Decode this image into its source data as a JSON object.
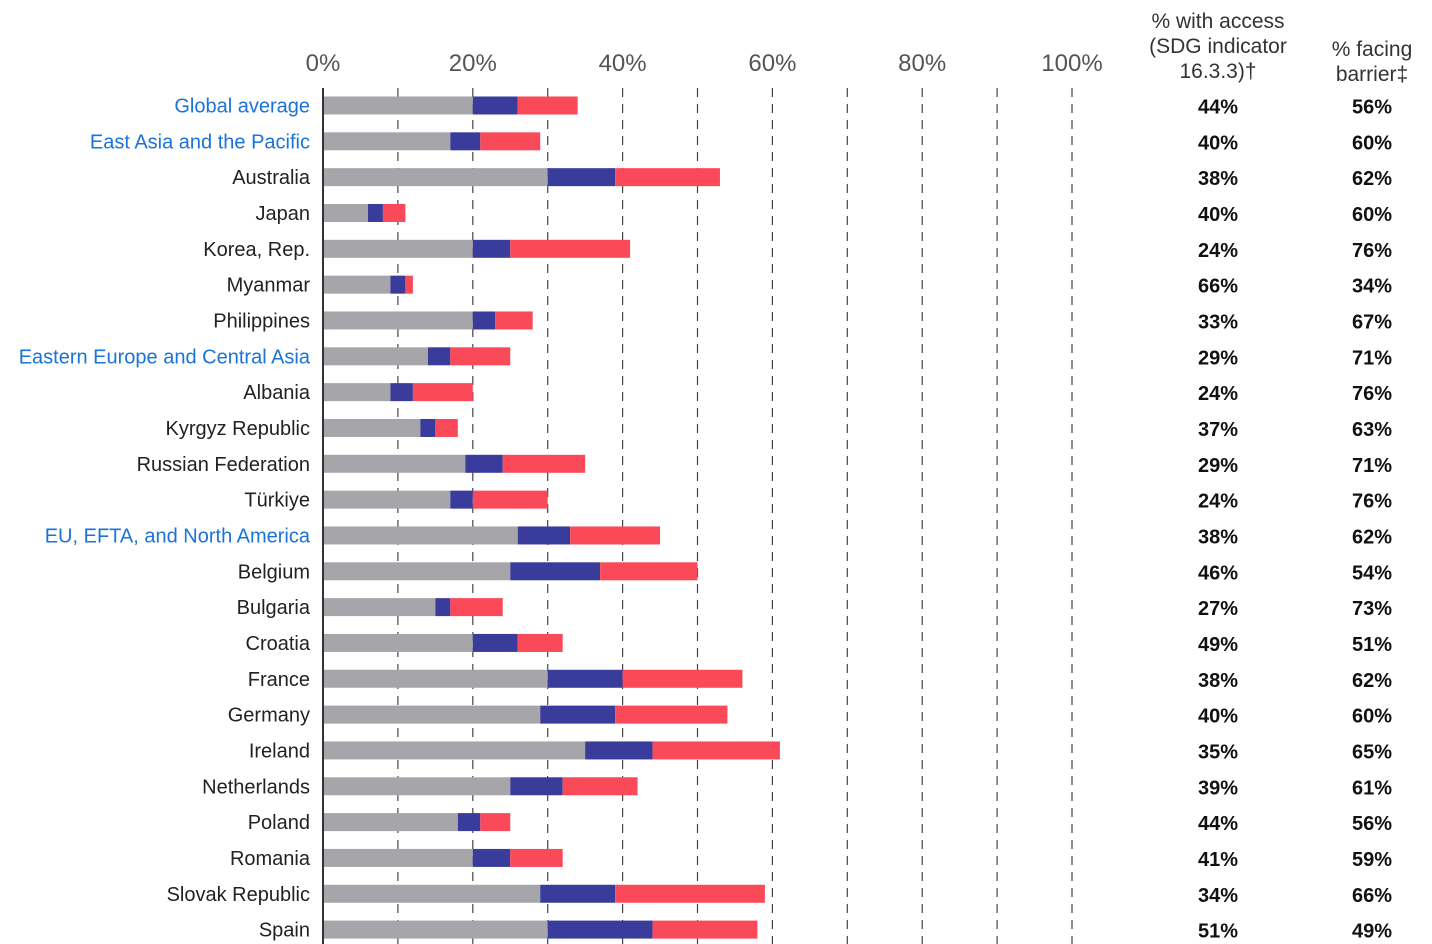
{
  "chart_data": {
    "type": "bar",
    "orientation": "horizontal",
    "stacked": true,
    "xlim": [
      0,
      100
    ],
    "x_ticks": [
      "0%",
      "20%",
      "40%",
      "60%",
      "80%",
      "100%"
    ],
    "grid": true,
    "colors": {
      "segment_1": "#a6a6aa",
      "segment_2": "#3a3c9c",
      "segment_3": "#fa4a5a",
      "region_label": "#1a73d9",
      "country_label": "#222222"
    },
    "columns": [
      {
        "lines": [
          "% with access",
          "(SDG indicator",
          "16.3.3)†"
        ]
      },
      {
        "lines": [
          "% facing",
          "barrier‡"
        ]
      }
    ],
    "categories": [
      "Global average",
      "East Asia and the Pacific",
      "Australia",
      "Japan",
      "Korea, Rep.",
      "Myanmar",
      "Philippines",
      "Eastern Europe and Central Asia",
      "Albania",
      "Kyrgyz Republic",
      "Russian Federation",
      "Türkiye",
      "EU, EFTA, and North America",
      "Belgium",
      "Bulgaria",
      "Croatia",
      "France",
      "Germany",
      "Ireland",
      "Netherlands",
      "Poland",
      "Romania",
      "Slovak Republic",
      "Spain"
    ],
    "is_region": [
      true,
      true,
      false,
      false,
      false,
      false,
      false,
      true,
      false,
      false,
      false,
      false,
      true,
      false,
      false,
      false,
      false,
      false,
      false,
      false,
      false,
      false,
      false,
      false
    ],
    "series": [
      {
        "values": [
          20,
          17,
          30,
          6,
          20,
          9,
          20,
          14,
          9,
          13,
          19,
          17,
          26,
          25,
          15,
          20,
          30,
          29,
          35,
          25,
          18,
          20,
          29,
          30
        ]
      },
      {
        "values": [
          6,
          4,
          9,
          2,
          5,
          2,
          3,
          3,
          3,
          2,
          5,
          3,
          7,
          12,
          2,
          6,
          10,
          10,
          9,
          7,
          3,
          5,
          10,
          14
        ]
      },
      {
        "values": [
          8,
          8,
          14,
          3,
          16,
          1,
          5,
          8,
          8,
          3,
          11,
          10,
          12,
          13,
          7,
          6,
          16,
          15,
          17,
          10,
          4,
          7,
          20,
          14
        ]
      }
    ],
    "pct_with_access": [
      "44%",
      "40%",
      "38%",
      "40%",
      "24%",
      "66%",
      "33%",
      "29%",
      "24%",
      "37%",
      "29%",
      "24%",
      "38%",
      "46%",
      "27%",
      "49%",
      "38%",
      "40%",
      "35%",
      "39%",
      "44%",
      "41%",
      "34%",
      "51%"
    ],
    "pct_facing_barrier": [
      "56%",
      "60%",
      "62%",
      "60%",
      "76%",
      "34%",
      "67%",
      "71%",
      "76%",
      "63%",
      "71%",
      "76%",
      "62%",
      "54%",
      "73%",
      "51%",
      "62%",
      "60%",
      "65%",
      "61%",
      "56%",
      "59%",
      "66%",
      "49%"
    ]
  }
}
